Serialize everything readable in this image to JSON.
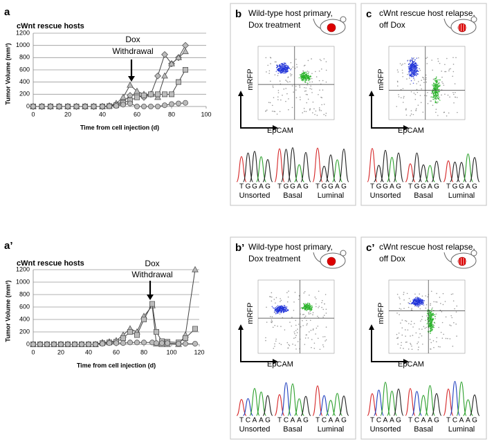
{
  "chart_data": [
    {
      "type": "line",
      "panel": "a",
      "title": "cWnt rescue hosts",
      "x_label": "Time from cell injection (d)",
      "y_label": "Tumor Volume (mm³)",
      "annotation": [
        "Dox",
        "Withdrawal"
      ],
      "x": [
        0,
        5,
        10,
        15,
        20,
        25,
        30,
        35,
        40,
        44,
        48,
        52,
        56,
        60,
        64,
        68,
        72,
        76,
        80,
        84,
        88
      ],
      "series": [
        {
          "marker": "diamond",
          "color": "#bbbbbb",
          "values": [
            0,
            0,
            0,
            0,
            0,
            0,
            0,
            0,
            0,
            10,
            40,
            80,
            180,
            200,
            150,
            200,
            500,
            850,
            700,
            800,
            1000
          ]
        },
        {
          "marker": "triangle",
          "color": "#bbbbbb",
          "values": [
            0,
            0,
            0,
            0,
            0,
            0,
            0,
            0,
            0,
            10,
            50,
            150,
            350,
            250,
            200,
            200,
            150,
            500,
            700,
            800,
            900
          ]
        },
        {
          "marker": "square",
          "color": "#bbbbbb",
          "values": [
            0,
            0,
            0,
            0,
            0,
            0,
            0,
            0,
            0,
            5,
            20,
            60,
            100,
            150,
            180,
            200,
            200,
            200,
            200,
            400,
            600
          ]
        },
        {
          "marker": "circle",
          "color": "#bbbbbb",
          "values": [
            0,
            0,
            0,
            0,
            0,
            0,
            0,
            0,
            0,
            5,
            10,
            30,
            50,
            0,
            0,
            0,
            0,
            20,
            40,
            50,
            60
          ]
        }
      ],
      "xlim": [
        0,
        100
      ],
      "xticks": [
        0,
        20,
        40,
        60,
        80,
        100
      ],
      "ylim": [
        0,
        1200
      ],
      "yticks": [
        0,
        200,
        400,
        600,
        800,
        1000,
        1200
      ],
      "grid": true
    },
    {
      "type": "line",
      "panel": "a’",
      "title": "cWnt rescue hosts",
      "x_label": "Time from cell injection (d)",
      "y_label": "Tumor Volume (mm³)",
      "annotation": [
        "Dox",
        "Withdrawal"
      ],
      "x": [
        0,
        5,
        10,
        15,
        20,
        25,
        30,
        35,
        40,
        45,
        50,
        55,
        60,
        65,
        70,
        75,
        80,
        86,
        89,
        93,
        97,
        105,
        110,
        117
      ],
      "series": [
        {
          "marker": "triangle",
          "color": "#bbbbbb",
          "values": [
            0,
            0,
            0,
            0,
            0,
            0,
            0,
            0,
            0,
            0,
            30,
            40,
            60,
            150,
            250,
            200,
            450,
            620,
            10,
            0,
            0,
            0,
            150,
            1200
          ]
        },
        {
          "marker": "square",
          "color": "#bbbbbb",
          "values": [
            0,
            0,
            0,
            0,
            0,
            0,
            0,
            0,
            0,
            0,
            20,
            30,
            40,
            100,
            200,
            150,
            400,
            650,
            200,
            50,
            40,
            30,
            100,
            250
          ]
        },
        {
          "marker": "circle",
          "color": "#bbbbbb",
          "values": [
            0,
            0,
            0,
            0,
            0,
            0,
            0,
            0,
            0,
            0,
            10,
            20,
            20,
            20,
            30,
            30,
            30,
            30,
            20,
            20,
            20,
            10,
            10,
            10
          ]
        }
      ],
      "xlim": [
        0,
        120
      ],
      "xticks": [
        0,
        20,
        40,
        60,
        80,
        100,
        120
      ],
      "ylim": [
        0,
        1200
      ],
      "yticks": [
        0,
        200,
        400,
        600,
        800,
        1000,
        1200
      ],
      "grid": true
    }
  ],
  "base_colors": {
    "T": "#d62728",
    "G": "#222222",
    "A": "#2ca02c",
    "C": "#1f3fbf"
  },
  "panels": [
    {
      "label": "b",
      "title": [
        "Wild-type host primary,",
        "Dox treatment"
      ],
      "y_axis": "mRFP",
      "x_axis": "EpCAM",
      "sequence": [
        "T",
        "G",
        "G",
        "A",
        "G"
      ],
      "groups": [
        "Unsorted",
        "Basal",
        "Luminal"
      ]
    },
    {
      "label": "c",
      "title": [
        "cWnt rescue host relapse,",
        "off Dox"
      ],
      "y_axis": "mRFP",
      "x_axis": "EpCAM",
      "sequence": [
        "T",
        "G",
        "G",
        "A",
        "G"
      ],
      "groups": [
        "Unsorted",
        "Basal",
        "Luminal"
      ]
    },
    {
      "label": "b’",
      "title": [
        "Wild-type host primary,",
        "Dox treatment"
      ],
      "y_axis": "mRFP",
      "x_axis": "EpCAM",
      "sequence": [
        "T",
        "C",
        "A",
        "A",
        "G"
      ],
      "groups": [
        "Unsorted",
        "Basal",
        "Luminal"
      ]
    },
    {
      "label": "c’",
      "title": [
        "cWnt rescue host relapse,",
        "off Dox"
      ],
      "y_axis": "mRFP",
      "x_axis": "EpCAM",
      "sequence": [
        "T",
        "C",
        "A",
        "A",
        "G"
      ],
      "groups": [
        "Unsorted",
        "Basal",
        "Luminal"
      ]
    }
  ]
}
